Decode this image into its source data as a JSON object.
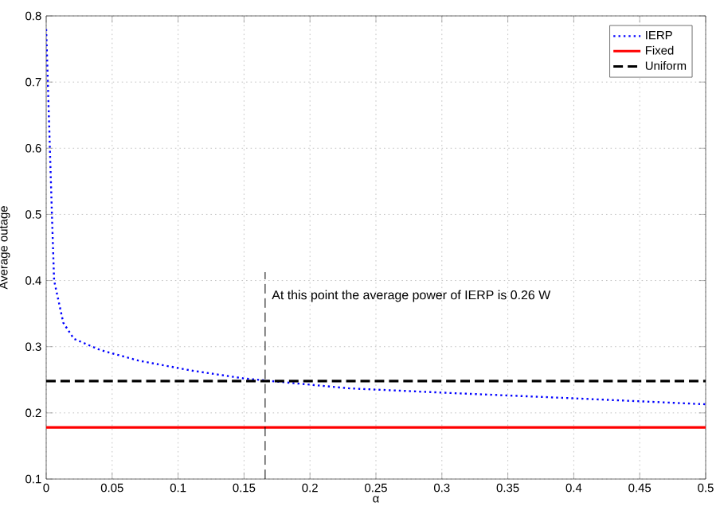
{
  "chart_data": {
    "type": "line",
    "xlabel": "α",
    "ylabel": "Average outage",
    "xlim": [
      0,
      0.5
    ],
    "ylim": [
      0.1,
      0.8
    ],
    "xticks": [
      0,
      0.05,
      0.1,
      0.15,
      0.2,
      0.25,
      0.3,
      0.35,
      0.4,
      0.45,
      0.5
    ],
    "yticks": [
      0.1,
      0.2,
      0.3,
      0.4,
      0.5,
      0.6,
      0.7,
      0.8
    ],
    "grid": true,
    "legend": "top right",
    "marker": "none",
    "series": [
      {
        "name": "IERP",
        "color": "#0000ff",
        "line_style": "dotted",
        "x": [
          0,
          0.0045,
          0.006,
          0.013,
          0.021,
          0.041,
          0.07,
          0.11,
          0.15,
          0.23,
          0.307,
          0.4,
          0.5
        ],
        "values": [
          0.78,
          0.49,
          0.4,
          0.336,
          0.312,
          0.295,
          0.279,
          0.264,
          0.252,
          0.237,
          0.23,
          0.222,
          0.213
        ]
      },
      {
        "name": "Fixed",
        "color": "#ff0000",
        "line_style": "solid",
        "x": [
          0,
          0.5
        ],
        "values": [
          0.178,
          0.178
        ]
      },
      {
        "name": "Uniform",
        "color": "#000000",
        "line_style": "dashed",
        "x": [
          0,
          0.5
        ],
        "values": [
          0.248,
          0.248
        ]
      }
    ],
    "ref_lines": [
      {
        "axis": "x",
        "value": 0.166,
        "label": "At this point the average power of IERP is 0.26 W",
        "color": "#000000",
        "line_style": "dashed"
      }
    ]
  }
}
